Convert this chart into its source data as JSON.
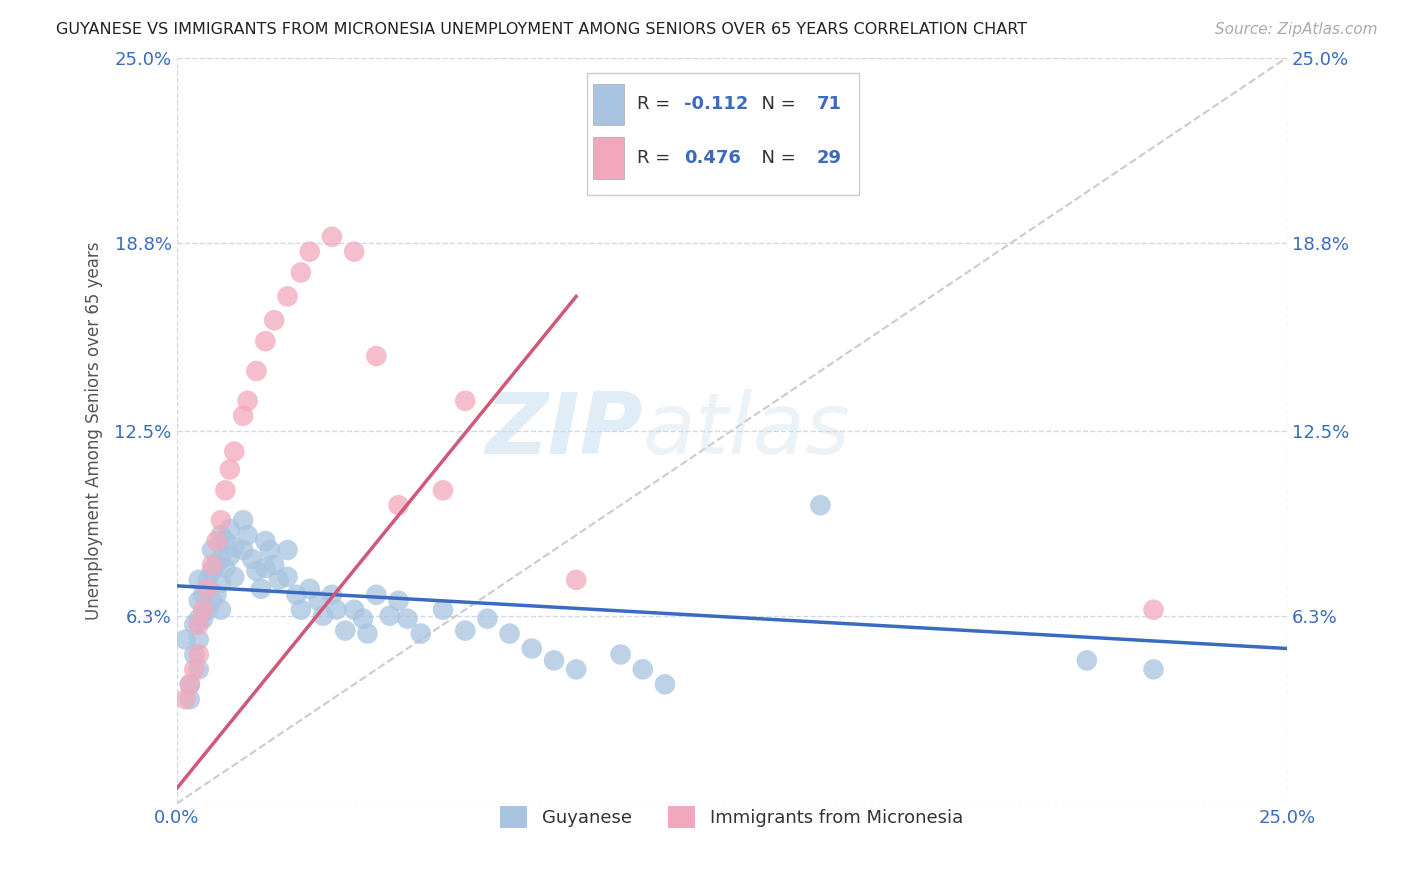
{
  "title": "GUYANESE VS IMMIGRANTS FROM MICRONESIA UNEMPLOYMENT AMONG SENIORS OVER 65 YEARS CORRELATION CHART",
  "source": "Source: ZipAtlas.com",
  "ylabel": "Unemployment Among Seniors over 65 years",
  "xmin": 0.0,
  "xmax": 0.25,
  "ymin": 0.0,
  "ymax": 0.25,
  "ytick_vals": [
    0.0,
    0.063,
    0.125,
    0.188,
    0.25
  ],
  "ytick_labels": [
    "",
    "6.3%",
    "12.5%",
    "18.8%",
    "25.0%"
  ],
  "xtick_vals": [
    0.0,
    0.25
  ],
  "xtick_labels": [
    "0.0%",
    "25.0%"
  ],
  "r1": -0.112,
  "n1": 71,
  "r2": 0.476,
  "n2": 29,
  "legend_label1": "Guyanese",
  "legend_label2": "Immigrants from Micronesia",
  "color_blue": "#a8c4e0",
  "color_pink": "#f2a8bc",
  "color_blue_line": "#3a6bbf",
  "color_pink_line": "#d05878",
  "color_text_r": "#3a6bbf",
  "color_text_n": "#3a6bbf",
  "watermark_zip": "ZIP",
  "watermark_atlas": "atlas",
  "background_color": "#ffffff",
  "guyanese_x": [
    0.002,
    0.003,
    0.003,
    0.004,
    0.004,
    0.005,
    0.005,
    0.005,
    0.005,
    0.005,
    0.006,
    0.006,
    0.007,
    0.007,
    0.008,
    0.008,
    0.008,
    0.009,
    0.009,
    0.01,
    0.01,
    0.01,
    0.01,
    0.011,
    0.011,
    0.012,
    0.012,
    0.013,
    0.013,
    0.015,
    0.015,
    0.016,
    0.017,
    0.018,
    0.019,
    0.02,
    0.02,
    0.021,
    0.022,
    0.023,
    0.025,
    0.025,
    0.027,
    0.028,
    0.03,
    0.032,
    0.033,
    0.035,
    0.036,
    0.038,
    0.04,
    0.042,
    0.043,
    0.045,
    0.048,
    0.05,
    0.052,
    0.055,
    0.06,
    0.065,
    0.07,
    0.075,
    0.08,
    0.085,
    0.09,
    0.1,
    0.105,
    0.11,
    0.145,
    0.22,
    0.205
  ],
  "guyanese_y": [
    0.055,
    0.04,
    0.035,
    0.06,
    0.05,
    0.075,
    0.068,
    0.062,
    0.055,
    0.045,
    0.07,
    0.062,
    0.075,
    0.065,
    0.085,
    0.078,
    0.068,
    0.08,
    0.07,
    0.09,
    0.082,
    0.074,
    0.065,
    0.088,
    0.079,
    0.092,
    0.083,
    0.086,
    0.076,
    0.095,
    0.085,
    0.09,
    0.082,
    0.078,
    0.072,
    0.088,
    0.079,
    0.085,
    0.08,
    0.075,
    0.085,
    0.076,
    0.07,
    0.065,
    0.072,
    0.068,
    0.063,
    0.07,
    0.065,
    0.058,
    0.065,
    0.062,
    0.057,
    0.07,
    0.063,
    0.068,
    0.062,
    0.057,
    0.065,
    0.058,
    0.062,
    0.057,
    0.052,
    0.048,
    0.045,
    0.05,
    0.045,
    0.04,
    0.1,
    0.045,
    0.048
  ],
  "micronesia_x": [
    0.002,
    0.003,
    0.004,
    0.005,
    0.005,
    0.006,
    0.007,
    0.008,
    0.009,
    0.01,
    0.011,
    0.012,
    0.013,
    0.015,
    0.016,
    0.018,
    0.02,
    0.022,
    0.025,
    0.028,
    0.03,
    0.035,
    0.04,
    0.045,
    0.05,
    0.06,
    0.065,
    0.09,
    0.22
  ],
  "micronesia_y": [
    0.035,
    0.04,
    0.045,
    0.05,
    0.06,
    0.065,
    0.072,
    0.08,
    0.088,
    0.095,
    0.105,
    0.112,
    0.118,
    0.13,
    0.135,
    0.145,
    0.155,
    0.162,
    0.17,
    0.178,
    0.185,
    0.19,
    0.185,
    0.15,
    0.1,
    0.105,
    0.135,
    0.075,
    0.065
  ]
}
